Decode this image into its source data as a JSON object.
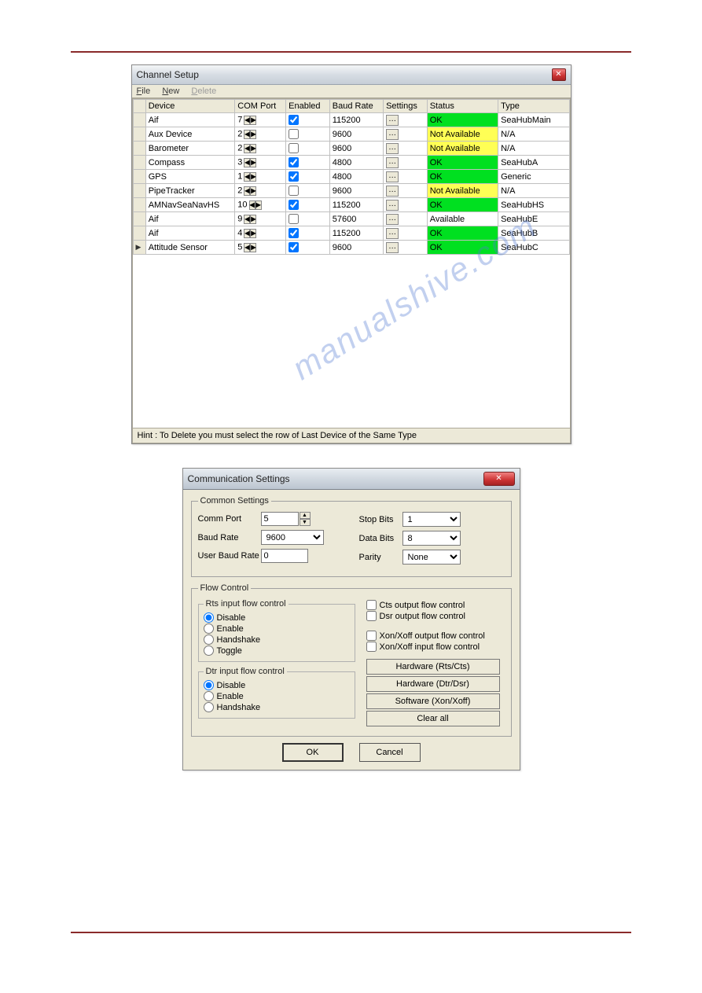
{
  "colors": {
    "ok": "#00e020",
    "na": "#ffff55",
    "available": "#ffffff",
    "border_rule": "#8a2a2a"
  },
  "watermark": "manualshive.com",
  "window_a": {
    "title": "Channel Setup",
    "menu": {
      "file": "File",
      "new": "New",
      "delete": "Delete"
    },
    "columns": {
      "device": "Device",
      "com_port": "COM Port",
      "enabled": "Enabled",
      "baud_rate": "Baud Rate",
      "settings": "Settings",
      "status": "Status",
      "type": "Type"
    },
    "rows": [
      {
        "sel": "",
        "device": "Aif",
        "com": "7",
        "enabled": true,
        "baud": "115200",
        "status": "OK",
        "st_class": "st-ok",
        "type": "SeaHubMain"
      },
      {
        "sel": "",
        "device": "Aux Device",
        "com": "2",
        "enabled": false,
        "baud": "9600",
        "status": "Not Available",
        "st_class": "st-na",
        "type": "N/A"
      },
      {
        "sel": "",
        "device": "Barometer",
        "com": "2",
        "enabled": false,
        "baud": "9600",
        "status": "Not Available",
        "st_class": "st-na",
        "type": "N/A"
      },
      {
        "sel": "",
        "device": "Compass",
        "com": "3",
        "enabled": true,
        "baud": "4800",
        "status": "OK",
        "st_class": "st-ok",
        "type": "SeaHubA"
      },
      {
        "sel": "",
        "device": "GPS",
        "com": "1",
        "enabled": true,
        "baud": "4800",
        "status": "OK",
        "st_class": "st-ok",
        "type": "Generic"
      },
      {
        "sel": "",
        "device": "PipeTracker",
        "com": "2",
        "enabled": false,
        "baud": "9600",
        "status": "Not Available",
        "st_class": "st-na",
        "type": "N/A"
      },
      {
        "sel": "",
        "device": "AMNavSeaNavHS",
        "com": "10",
        "enabled": true,
        "baud": "115200",
        "status": "OK",
        "st_class": "st-ok",
        "type": "SeaHubHS"
      },
      {
        "sel": "",
        "device": "Aif",
        "com": "9",
        "enabled": false,
        "baud": "57600",
        "status": "Available",
        "st_class": "st-av",
        "type": "SeaHubE"
      },
      {
        "sel": "",
        "device": "Aif",
        "com": "4",
        "enabled": true,
        "baud": "115200",
        "status": "OK",
        "st_class": "st-ok",
        "type": "SeaHubB"
      },
      {
        "sel": "▶",
        "device": "Attitude Sensor",
        "com": "5",
        "enabled": true,
        "baud": "9600",
        "status": "OK",
        "st_class": "st-ok",
        "type": "SeaHubC"
      }
    ],
    "hint": "Hint : To Delete you must select the row of Last Device of the Same Type"
  },
  "window_b": {
    "title": "Communication Settings",
    "group_common": "Common Settings",
    "comm_port_label": "Comm Port",
    "comm_port_value": "5",
    "baud_rate_label": "Baud Rate",
    "baud_rate_value": "9600",
    "user_baud_label": "User Baud Rate",
    "user_baud_value": "0",
    "stop_bits_label": "Stop Bits",
    "stop_bits_value": "1",
    "data_bits_label": "Data Bits",
    "data_bits_value": "8",
    "parity_label": "Parity",
    "parity_value": "None",
    "group_flow": "Flow Control",
    "rts_legend": "Rts input flow control",
    "dtr_legend": "Dtr input flow control",
    "radio": {
      "disable": "Disable",
      "enable": "Enable",
      "handshake": "Handshake",
      "toggle": "Toggle"
    },
    "rts_selected": "disable",
    "dtr_selected": "disable",
    "chk_cts": "Cts output flow control",
    "chk_dsr": "Dsr output flow control",
    "chk_xon_out": "Xon/Xoff output flow control",
    "chk_xon_in": "Xon/Xoff input flow control",
    "btn_hw_rts": "Hardware (Rts/Cts)",
    "btn_hw_dtr": "Hardware (Dtr/Dsr)",
    "btn_sw_xon": "Software (Xon/Xoff)",
    "btn_clear": "Clear all",
    "btn_ok": "OK",
    "btn_cancel": "Cancel"
  }
}
